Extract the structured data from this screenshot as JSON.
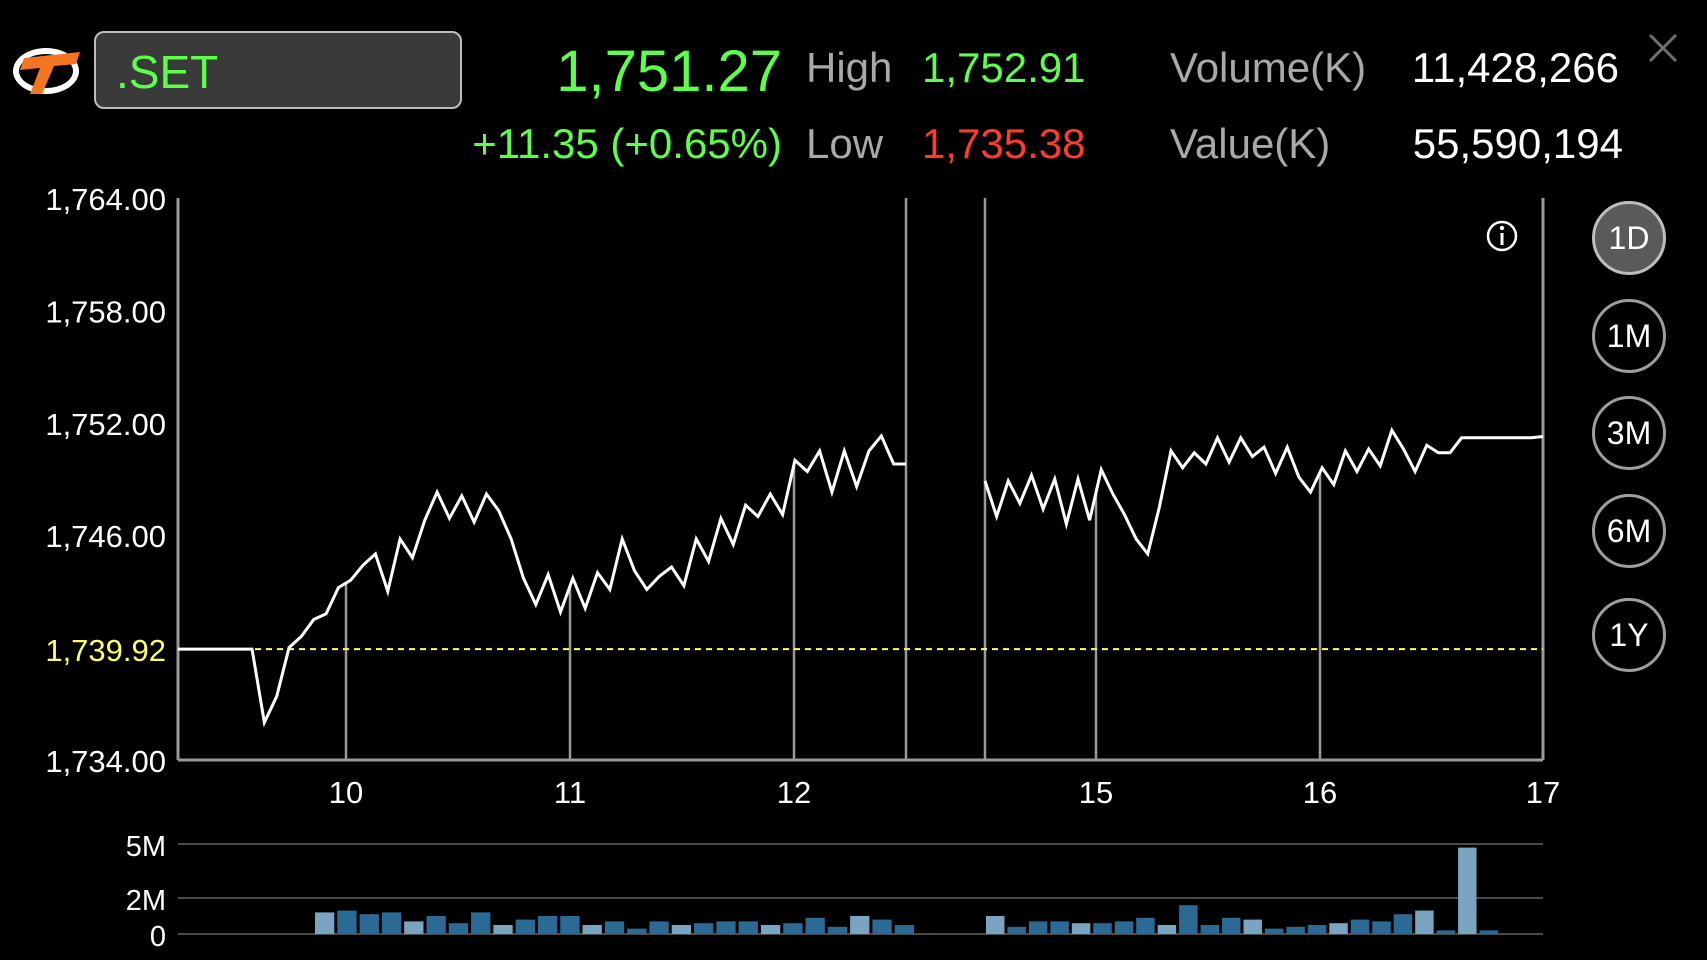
{
  "header": {
    "symbol": ".SET",
    "last_price": "1,751.27",
    "change": "+11.35 (+0.65%)",
    "high_label": "High",
    "high_value": "1,752.91",
    "low_label": "Low",
    "low_value": "1,735.38",
    "volume_label": "Volume(K)",
    "volume_value": "11,428,266",
    "value_label": "Value(K)",
    "value_value": "55,590,194"
  },
  "range_buttons": [
    {
      "label": "1D",
      "active": true
    },
    {
      "label": "1M",
      "active": false
    },
    {
      "label": "3M",
      "active": false
    },
    {
      "label": "6M",
      "active": false
    },
    {
      "label": "1Y",
      "active": false
    }
  ],
  "colors": {
    "up": "#5dff4a",
    "down": "#ff3b30",
    "reference": "#ffff66",
    "volume_dark": "#2b6a95",
    "volume_light": "#7aa4c0"
  },
  "icons": {
    "logo": "tfex-logo",
    "info": "info-icon",
    "close": "close-icon"
  },
  "chart_data": [
    {
      "type": "line",
      "y_ticks": [
        "1,764.00",
        "1,758.00",
        "1,752.00",
        "1,746.00",
        "1,734.00"
      ],
      "reference_label": "1,739.92",
      "reference_value": 1739.92,
      "ylim": [
        1734,
        1764
      ],
      "x_ticks": [
        "10",
        "11",
        "12",
        "15",
        "16",
        "17"
      ],
      "grid": false,
      "series": [
        {
          "segments": [
            [
              1739.92,
              1739.92,
              1739.92,
              1739.92,
              1739.92,
              1739.92,
              1739.92,
              1736.0,
              1737.4,
              1740.0,
              1740.6,
              1741.5,
              1741.8,
              1743.2,
              1743.6,
              1744.4,
              1745.0,
              1743.0,
              1745.8,
              1744.8,
              1746.8,
              1748.3,
              1746.9,
              1748.1,
              1746.7,
              1748.2,
              1747.3,
              1745.8,
              1743.7,
              1742.3,
              1743.9,
              1741.9,
              1743.7,
              1742.1,
              1744.0,
              1743.1,
              1745.8,
              1744.1,
              1743.1,
              1743.8,
              1744.3,
              1743.3,
              1745.8,
              1744.6,
              1746.9,
              1745.5,
              1747.6,
              1747.0,
              1748.2,
              1747.1,
              1750.0,
              1749.4,
              1750.5,
              1748.3,
              1750.5,
              1748.6,
              1750.5,
              1751.3,
              1749.8,
              1749.8
            ],
            [
              1748.9,
              1747.0,
              1748.9,
              1747.7,
              1749.2,
              1747.4,
              1749.0,
              1746.6,
              1749.0,
              1746.8,
              1749.5,
              1748.2,
              1747.1,
              1745.8,
              1745.0,
              1747.5,
              1750.5,
              1749.6,
              1750.4,
              1749.8,
              1751.2,
              1749.9,
              1751.2,
              1750.2,
              1750.7,
              1749.3,
              1750.7,
              1749.1,
              1748.3,
              1749.6,
              1748.7,
              1750.5,
              1749.4,
              1750.6,
              1749.7,
              1751.6,
              1750.6,
              1749.4,
              1750.8,
              1750.4,
              1750.4,
              1751.2,
              1751.2,
              1751.2,
              1751.2,
              1751.2,
              1751.2,
              1751.2,
              1751.27
            ]
          ]
        }
      ]
    },
    {
      "type": "bar",
      "y_ticks": [
        "5M",
        "2M",
        "0"
      ],
      "ylim": [
        0,
        5
      ],
      "bars": [
        [
          1.2,
          1.3,
          1.1,
          1.2,
          0.7,
          1.0,
          0.6,
          1.2,
          0.5,
          0.8,
          1.0,
          1.0,
          0.5,
          0.7,
          0.3,
          0.7,
          0.5,
          0.6,
          0.7,
          0.7,
          0.5,
          0.6,
          0.9,
          0.4,
          1.0,
          0.8,
          0.5
        ],
        [
          1.0,
          0.4,
          0.7,
          0.7,
          0.6,
          0.6,
          0.7,
          0.9,
          0.5,
          1.6,
          0.5,
          0.9,
          0.8,
          0.3,
          0.4,
          0.5,
          0.6,
          0.8,
          0.7,
          1.1,
          1.3,
          0.2,
          4.8,
          0.2
        ]
      ]
    }
  ]
}
